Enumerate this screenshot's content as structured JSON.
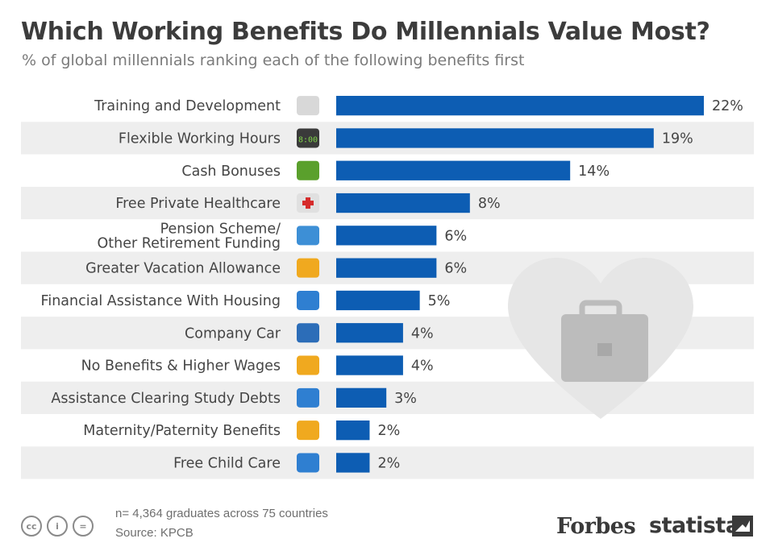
{
  "chart_data": {
    "type": "bar",
    "orientation": "horizontal",
    "title": "Which Working Benefits Do Millennials Value Most?",
    "subtitle": "% of global millennials ranking each of the following benefits first",
    "categories": [
      "Training and Development",
      "Flexible Working Hours",
      "Cash Bonuses",
      "Free Private Healthcare",
      "Pension Scheme/\nOther Retirement Funding",
      "Greater Vacation Allowance",
      "Financial Assistance With Housing",
      "Company Car",
      "No Benefits & Higher Wages",
      "Assistance Clearing Study Debts",
      "Maternity/Paternity Benefits",
      "Free Child Care"
    ],
    "values": [
      22,
      19,
      14,
      8,
      6,
      6,
      5,
      4,
      4,
      3,
      2,
      2
    ],
    "value_suffix": "%",
    "icons": [
      "certificate-icon",
      "alarm-clock-icon",
      "banknote-icon",
      "first-aid-kit-icon",
      "piggy-bank-icon",
      "suitcase-icon",
      "house-icon",
      "car-icon",
      "wallet-icon",
      "graduation-cap-icon",
      "parents-icon",
      "pacifier-icon"
    ],
    "bar_color": "#0d5db3",
    "stripe_color": "#eeeeee",
    "xlim": [
      0,
      22
    ],
    "grid": false,
    "legend": "none"
  },
  "footer": {
    "note": "n= 4,364 graduates across 75 countries",
    "source": "Source: KPCB",
    "cc_icons": [
      "cc",
      "i",
      "="
    ],
    "brand1": "Forbes",
    "brand2": "statista"
  },
  "decor": {
    "heart_color": "#e6e6e6",
    "briefcase_color": "#bcbcbc"
  }
}
